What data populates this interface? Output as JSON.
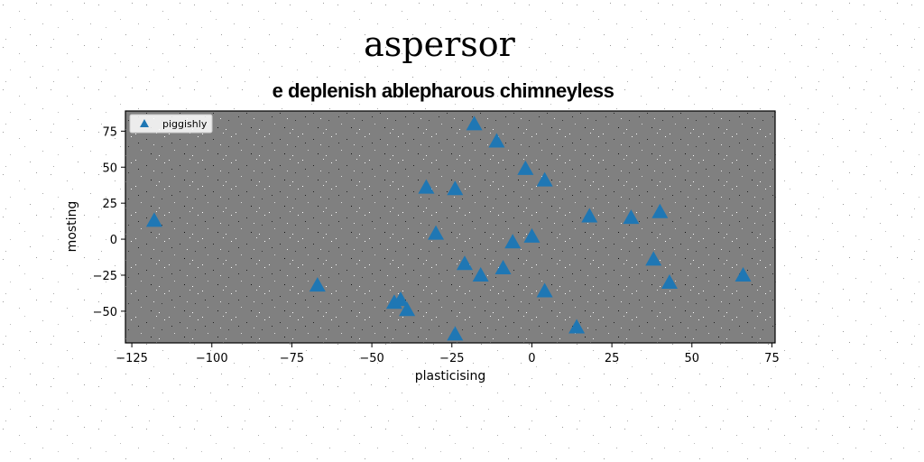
{
  "chart_data": {
    "type": "scatter",
    "suptitle": "aspersor",
    "title": "e deplenish ablepharous chimneyless",
    "xlabel": "plasticising",
    "ylabel": "mosting",
    "xlim": [
      -127,
      76
    ],
    "ylim": [
      -72,
      89
    ],
    "xticks": [
      -125,
      -100,
      -75,
      -50,
      -25,
      0,
      25,
      50,
      75
    ],
    "yticks": [
      -50,
      -25,
      0,
      25,
      50,
      75
    ],
    "legend_loc": "upper-left",
    "grid": false,
    "colors": {
      "background": "#808080",
      "marker": "#1f77b4",
      "page": "#ffffff"
    },
    "series": [
      {
        "name": "piggishly",
        "marker": "triangle",
        "points": [
          {
            "x": -118,
            "y": 13
          },
          {
            "x": -67,
            "y": -32
          },
          {
            "x": -43,
            "y": -44
          },
          {
            "x": -41,
            "y": -42
          },
          {
            "x": -39,
            "y": -49
          },
          {
            "x": -33,
            "y": 36
          },
          {
            "x": -30,
            "y": 4
          },
          {
            "x": -24,
            "y": 35
          },
          {
            "x": -24,
            "y": -66
          },
          {
            "x": -21,
            "y": -17
          },
          {
            "x": -18,
            "y": 80
          },
          {
            "x": -16,
            "y": -25
          },
          {
            "x": -11,
            "y": 68
          },
          {
            "x": -9,
            "y": -20
          },
          {
            "x": -6,
            "y": -2
          },
          {
            "x": -2,
            "y": 49
          },
          {
            "x": 0,
            "y": 2
          },
          {
            "x": 4,
            "y": 41
          },
          {
            "x": 4,
            "y": -36
          },
          {
            "x": 14,
            "y": -61
          },
          {
            "x": 18,
            "y": 16
          },
          {
            "x": 31,
            "y": 15
          },
          {
            "x": 38,
            "y": -14
          },
          {
            "x": 40,
            "y": 19
          },
          {
            "x": 43,
            "y": -30
          },
          {
            "x": 66,
            "y": -25
          }
        ]
      }
    ]
  }
}
